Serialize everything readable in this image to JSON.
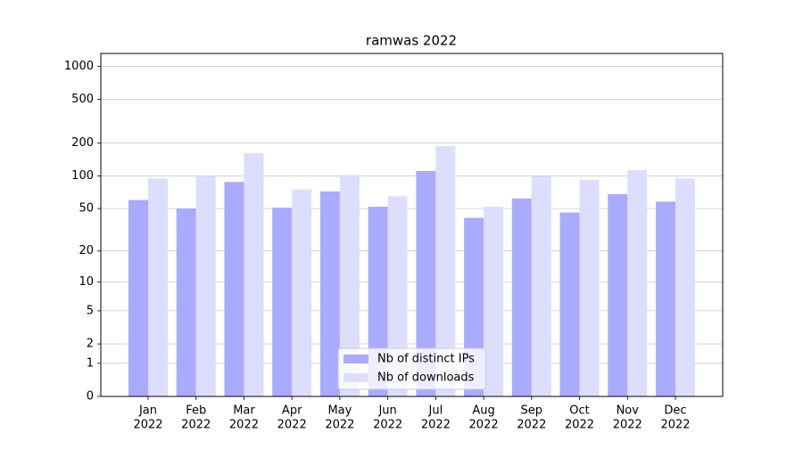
{
  "chart_data": {
    "type": "bar",
    "title": "ramwas 2022",
    "categories": [
      [
        "Jan",
        "2022"
      ],
      [
        "Feb",
        "2022"
      ],
      [
        "Mar",
        "2022"
      ],
      [
        "Apr",
        "2022"
      ],
      [
        "May",
        "2022"
      ],
      [
        "Jun",
        "2022"
      ],
      [
        "Jul",
        "2022"
      ],
      [
        "Aug",
        "2022"
      ],
      [
        "Sep",
        "2022"
      ],
      [
        "Oct",
        "2022"
      ],
      [
        "Nov",
        "2022"
      ],
      [
        "Dec",
        "2022"
      ]
    ],
    "series": [
      {
        "name": "Nb of distinct IPs",
        "color": "#aaaaff",
        "values": [
          60,
          50,
          88,
          51,
          72,
          52,
          111,
          41,
          62,
          46,
          68,
          58
        ]
      },
      {
        "name": "Nb of downloads",
        "color": "#ddddff",
        "values": [
          95,
          100,
          161,
          75,
          102,
          65,
          187,
          52,
          99,
          92,
          113,
          95
        ]
      }
    ],
    "yscale": "log1p",
    "ylim": [
      0,
      1309
    ],
    "yticks": [
      0,
      1,
      2,
      5,
      10,
      20,
      50,
      100,
      200,
      500,
      1000
    ],
    "grid": true,
    "legend": "lower center"
  }
}
